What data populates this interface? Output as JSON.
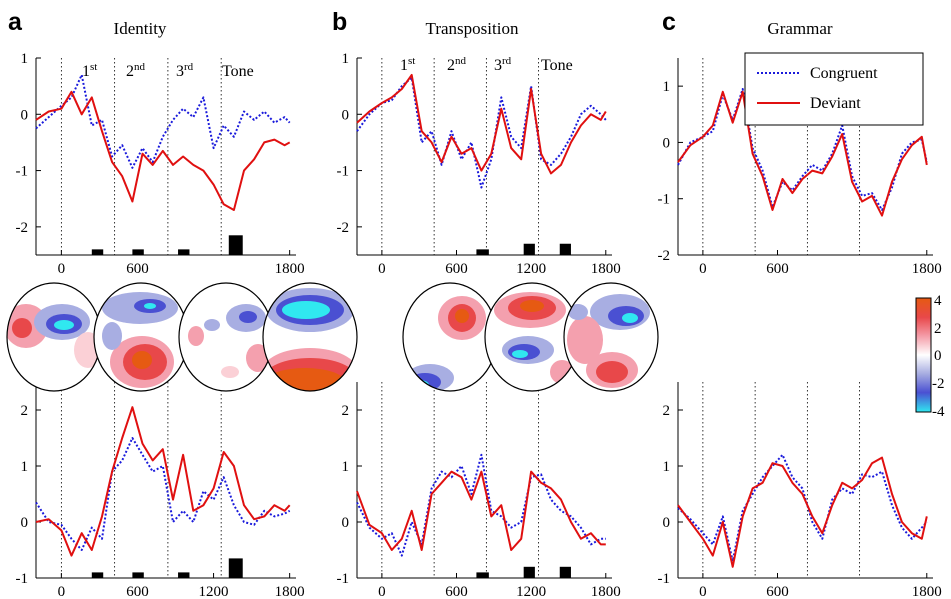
{
  "colors": {
    "congruent": "#1a1adb",
    "deviant": "#e01010",
    "bar": "#000000",
    "guide": "#000000"
  },
  "legend": {
    "congruent": "Congruent",
    "deviant": "Deviant"
  },
  "colorbar": {
    "ticks": [
      "4",
      "2",
      "0",
      "-2",
      "-4"
    ],
    "colors": [
      "#e65a12",
      "#e8484a",
      "#f49aa6",
      "#ffffff",
      "#a4aae0",
      "#4a50d2",
      "#30e8f0"
    ]
  },
  "segments": {
    "first": [
      "1",
      "st"
    ],
    "second": [
      "2",
      "nd"
    ],
    "third": [
      "3",
      "rd"
    ],
    "tone": "Tone"
  },
  "chart_data": [
    {
      "type": "line",
      "panel": "a",
      "title": "Identity",
      "row": "top",
      "xlim": [
        -200,
        1850
      ],
      "ylim": [
        -2.5,
        1.0
      ],
      "xticks": [
        "0",
        "600",
        "1800"
      ],
      "yticks": [
        "1",
        "0",
        "-1",
        "-2"
      ],
      "onsets": [
        0,
        420,
        840,
        1260
      ],
      "series": [
        {
          "name": "Congruent",
          "x": [
            -200,
            -100,
            0,
            80,
            160,
            240,
            320,
            400,
            480,
            560,
            640,
            720,
            800,
            880,
            960,
            1040,
            1120,
            1200,
            1280,
            1360,
            1440,
            1520,
            1600,
            1680,
            1760,
            1800
          ],
          "y": [
            -0.25,
            -0.05,
            0.15,
            0.3,
            0.7,
            -0.2,
            -0.1,
            -0.75,
            -0.55,
            -0.95,
            -0.6,
            -0.85,
            -0.4,
            -0.1,
            0.1,
            -0.05,
            0.3,
            -0.6,
            -0.2,
            -0.4,
            0.05,
            -0.1,
            0.05,
            -0.15,
            -0.05,
            -0.15
          ]
        },
        {
          "name": "Deviant",
          "x": [
            -200,
            -100,
            0,
            80,
            160,
            240,
            320,
            400,
            480,
            560,
            640,
            720,
            800,
            880,
            960,
            1040,
            1120,
            1200,
            1280,
            1360,
            1440,
            1520,
            1600,
            1680,
            1760,
            1800
          ],
          "y": [
            -0.1,
            0.05,
            0.1,
            0.4,
            0.0,
            0.3,
            -0.3,
            -0.85,
            -1.1,
            -1.55,
            -0.7,
            -0.9,
            -0.65,
            -0.9,
            -0.75,
            -0.9,
            -1.0,
            -1.25,
            -1.6,
            -1.7,
            -1.0,
            -0.8,
            -0.5,
            -0.45,
            -0.55,
            -0.5
          ]
        }
      ],
      "bars": [
        {
          "x0": 240,
          "x1": 330,
          "h": 0.1
        },
        {
          "x0": 560,
          "x1": 650,
          "h": 0.1
        },
        {
          "x0": 920,
          "x1": 1010,
          "h": 0.1
        },
        {
          "x0": 1320,
          "x1": 1430,
          "h": 0.35
        }
      ]
    },
    {
      "type": "line",
      "panel": "b",
      "title": "Transposition",
      "row": "top",
      "xlim": [
        -200,
        1850
      ],
      "ylim": [
        -2.5,
        1.0
      ],
      "xticks": [
        "0",
        "600",
        "1200",
        "1800"
      ],
      "yticks": [
        "1",
        "0",
        "-1",
        "-2"
      ],
      "onsets": [
        0,
        420,
        840,
        1260
      ],
      "series": [
        {
          "name": "Congruent",
          "x": [
            -200,
            -100,
            0,
            80,
            160,
            240,
            320,
            400,
            480,
            560,
            640,
            720,
            800,
            880,
            960,
            1040,
            1120,
            1200,
            1280,
            1360,
            1440,
            1520,
            1600,
            1680,
            1760,
            1800
          ],
          "y": [
            -0.3,
            0.0,
            0.2,
            0.25,
            0.5,
            0.65,
            -0.5,
            -0.3,
            -0.9,
            -0.3,
            -0.8,
            -0.5,
            -1.3,
            -0.8,
            0.3,
            -0.4,
            -0.6,
            0.5,
            -0.8,
            -0.9,
            -0.7,
            -0.4,
            0.0,
            0.15,
            0.0,
            -0.1
          ]
        },
        {
          "name": "Deviant",
          "x": [
            -200,
            -100,
            0,
            80,
            160,
            240,
            320,
            400,
            480,
            560,
            640,
            720,
            800,
            880,
            960,
            1040,
            1120,
            1200,
            1280,
            1360,
            1440,
            1520,
            1600,
            1680,
            1760,
            1800
          ],
          "y": [
            -0.15,
            0.05,
            0.2,
            0.3,
            0.45,
            0.7,
            -0.3,
            -0.5,
            -0.85,
            -0.4,
            -0.7,
            -0.6,
            -1.0,
            -0.7,
            0.1,
            -0.6,
            -0.8,
            0.45,
            -0.7,
            -1.05,
            -0.9,
            -0.5,
            -0.2,
            0.0,
            -0.1,
            0.05
          ]
        }
      ],
      "bars": [
        {
          "x0": 760,
          "x1": 860,
          "h": 0.1
        },
        {
          "x0": 1140,
          "x1": 1230,
          "h": 0.2
        },
        {
          "x0": 1430,
          "x1": 1520,
          "h": 0.2
        }
      ]
    },
    {
      "type": "line",
      "panel": "c",
      "title": "Grammar",
      "row": "top",
      "xlim": [
        -200,
        1850
      ],
      "ylim": [
        -2.0,
        1.5
      ],
      "xticks": [
        "0",
        "600",
        "1800"
      ],
      "yticks": [
        "1",
        "0",
        "-1",
        "-2"
      ],
      "onsets": [
        0,
        420,
        840,
        1260
      ],
      "series": [
        {
          "name": "Congruent",
          "x": [
            -200,
            -100,
            0,
            80,
            160,
            240,
            320,
            400,
            480,
            560,
            640,
            720,
            800,
            880,
            960,
            1040,
            1120,
            1200,
            1280,
            1360,
            1440,
            1520,
            1600,
            1680,
            1760,
            1800
          ],
          "y": [
            -0.4,
            0.0,
            0.1,
            0.2,
            0.85,
            0.4,
            0.95,
            -0.1,
            -0.5,
            -1.15,
            -0.7,
            -0.85,
            -0.6,
            -0.4,
            -0.5,
            -0.2,
            0.3,
            -0.6,
            -0.95,
            -0.9,
            -1.2,
            -0.8,
            -0.2,
            0.0,
            0.05,
            -0.35
          ]
        },
        {
          "name": "Deviant",
          "x": [
            -200,
            -100,
            0,
            80,
            160,
            240,
            320,
            400,
            480,
            560,
            640,
            720,
            800,
            880,
            960,
            1040,
            1120,
            1200,
            1280,
            1360,
            1440,
            1520,
            1600,
            1680,
            1760,
            1800
          ],
          "y": [
            -0.35,
            -0.05,
            0.1,
            0.3,
            0.9,
            0.35,
            0.9,
            -0.2,
            -0.6,
            -1.2,
            -0.65,
            -0.9,
            -0.65,
            -0.5,
            -0.55,
            -0.25,
            0.15,
            -0.7,
            -1.05,
            -0.95,
            -1.3,
            -0.7,
            -0.3,
            -0.05,
            0.1,
            -0.4
          ]
        }
      ],
      "bars": []
    },
    {
      "type": "line",
      "panel": "a",
      "row": "bottom",
      "xlim": [
        -200,
        1850
      ],
      "ylim": [
        -1.0,
        2.5
      ],
      "xticks": [
        "0",
        "600",
        "1200",
        "1800"
      ],
      "yticks": [
        "2",
        "1",
        "0",
        "-1"
      ],
      "onsets": [
        0,
        420,
        840,
        1260
      ],
      "series": [
        {
          "name": "Congruent",
          "x": [
            -200,
            -100,
            0,
            80,
            160,
            240,
            320,
            400,
            480,
            560,
            640,
            720,
            800,
            880,
            960,
            1040,
            1120,
            1200,
            1280,
            1360,
            1440,
            1520,
            1600,
            1680,
            1760,
            1800
          ],
          "y": [
            0.35,
            0.0,
            -0.05,
            -0.3,
            -0.5,
            -0.1,
            -0.3,
            0.9,
            1.1,
            1.5,
            1.2,
            0.9,
            1.0,
            0.0,
            0.2,
            0.0,
            0.55,
            0.4,
            0.8,
            0.3,
            0.0,
            -0.05,
            0.2,
            0.1,
            0.15,
            0.2
          ]
        },
        {
          "name": "Deviant",
          "x": [
            -200,
            -100,
            0,
            80,
            160,
            240,
            320,
            400,
            480,
            560,
            640,
            720,
            800,
            880,
            960,
            1040,
            1120,
            1200,
            1280,
            1360,
            1440,
            1520,
            1600,
            1680,
            1760,
            1800
          ],
          "y": [
            0.0,
            0.05,
            -0.15,
            -0.6,
            -0.2,
            -0.5,
            0.1,
            0.9,
            1.5,
            2.05,
            1.4,
            1.1,
            1.3,
            0.4,
            1.2,
            0.2,
            0.3,
            0.6,
            1.25,
            1.0,
            0.3,
            0.05,
            0.1,
            0.3,
            0.2,
            0.3
          ]
        }
      ],
      "bars": [
        {
          "x0": 240,
          "x1": 330,
          "h": 0.1
        },
        {
          "x0": 560,
          "x1": 650,
          "h": 0.1
        },
        {
          "x0": 920,
          "x1": 1010,
          "h": 0.1
        },
        {
          "x0": 1320,
          "x1": 1430,
          "h": 0.35
        }
      ]
    },
    {
      "type": "line",
      "panel": "b",
      "row": "bottom",
      "xlim": [
        -200,
        1850
      ],
      "ylim": [
        -1.0,
        2.5
      ],
      "xticks": [
        "0",
        "600",
        "1200",
        "1800"
      ],
      "yticks": [
        "2",
        "1",
        "0",
        "-1"
      ],
      "onsets": [
        0,
        420,
        840,
        1260
      ],
      "series": [
        {
          "name": "Congruent",
          "x": [
            -200,
            -100,
            0,
            80,
            160,
            240,
            320,
            400,
            480,
            560,
            640,
            720,
            800,
            880,
            960,
            1040,
            1120,
            1200,
            1280,
            1360,
            1440,
            1520,
            1600,
            1680,
            1760,
            1800
          ],
          "y": [
            0.35,
            -0.1,
            -0.3,
            -0.2,
            -0.6,
            0.0,
            -0.4,
            0.6,
            0.9,
            0.8,
            1.0,
            0.5,
            1.2,
            0.2,
            0.1,
            -0.1,
            0.0,
            0.8,
            0.85,
            0.4,
            0.2,
            0.1,
            -0.1,
            -0.4,
            -0.3,
            -0.3
          ]
        },
        {
          "name": "Deviant",
          "x": [
            -200,
            -100,
            0,
            80,
            160,
            240,
            320,
            400,
            480,
            560,
            640,
            720,
            800,
            880,
            960,
            1040,
            1120,
            1200,
            1280,
            1360,
            1440,
            1520,
            1600,
            1680,
            1760,
            1800
          ],
          "y": [
            0.55,
            -0.05,
            -0.2,
            -0.5,
            -0.3,
            0.2,
            -0.5,
            0.5,
            0.7,
            0.9,
            0.8,
            0.4,
            0.9,
            0.1,
            0.3,
            -0.5,
            -0.3,
            0.9,
            0.7,
            0.6,
            0.4,
            0.0,
            -0.3,
            -0.2,
            -0.4,
            -0.4
          ]
        }
      ],
      "bars": [
        {
          "x0": 760,
          "x1": 860,
          "h": 0.1
        },
        {
          "x0": 1140,
          "x1": 1230,
          "h": 0.2
        },
        {
          "x0": 1430,
          "x1": 1520,
          "h": 0.2
        }
      ]
    },
    {
      "type": "line",
      "panel": "c",
      "row": "bottom",
      "xlim": [
        -200,
        1850
      ],
      "ylim": [
        -1.0,
        2.5
      ],
      "xticks": [
        "0",
        "600",
        "1800"
      ],
      "yticks": [
        "2",
        "1",
        "0",
        "-1"
      ],
      "onsets": [
        0,
        420,
        840,
        1260
      ],
      "series": [
        {
          "name": "Congruent",
          "x": [
            -200,
            -100,
            0,
            80,
            160,
            240,
            320,
            400,
            480,
            560,
            640,
            720,
            800,
            880,
            960,
            1040,
            1120,
            1200,
            1280,
            1360,
            1440,
            1520,
            1600,
            1680,
            1760,
            1800
          ],
          "y": [
            0.25,
            0.05,
            -0.2,
            -0.4,
            0.1,
            -0.7,
            0.2,
            0.5,
            0.8,
            1.0,
            1.2,
            0.8,
            0.6,
            0.0,
            -0.3,
            0.4,
            0.6,
            0.5,
            0.85,
            0.8,
            0.9,
            0.3,
            -0.1,
            -0.3,
            -0.1,
            0.0
          ]
        },
        {
          "name": "Deviant",
          "x": [
            -200,
            -100,
            0,
            80,
            160,
            240,
            320,
            400,
            480,
            560,
            640,
            720,
            800,
            880,
            960,
            1040,
            1120,
            1200,
            1280,
            1360,
            1440,
            1520,
            1600,
            1680,
            1760,
            1800
          ],
          "y": [
            0.3,
            0.0,
            -0.3,
            -0.6,
            0.0,
            -0.8,
            0.1,
            0.6,
            0.7,
            1.05,
            1.0,
            0.7,
            0.5,
            0.1,
            -0.2,
            0.3,
            0.7,
            0.6,
            0.75,
            1.05,
            1.15,
            0.5,
            0.0,
            -0.2,
            -0.3,
            0.1
          ]
        }
      ],
      "bars": []
    }
  ]
}
